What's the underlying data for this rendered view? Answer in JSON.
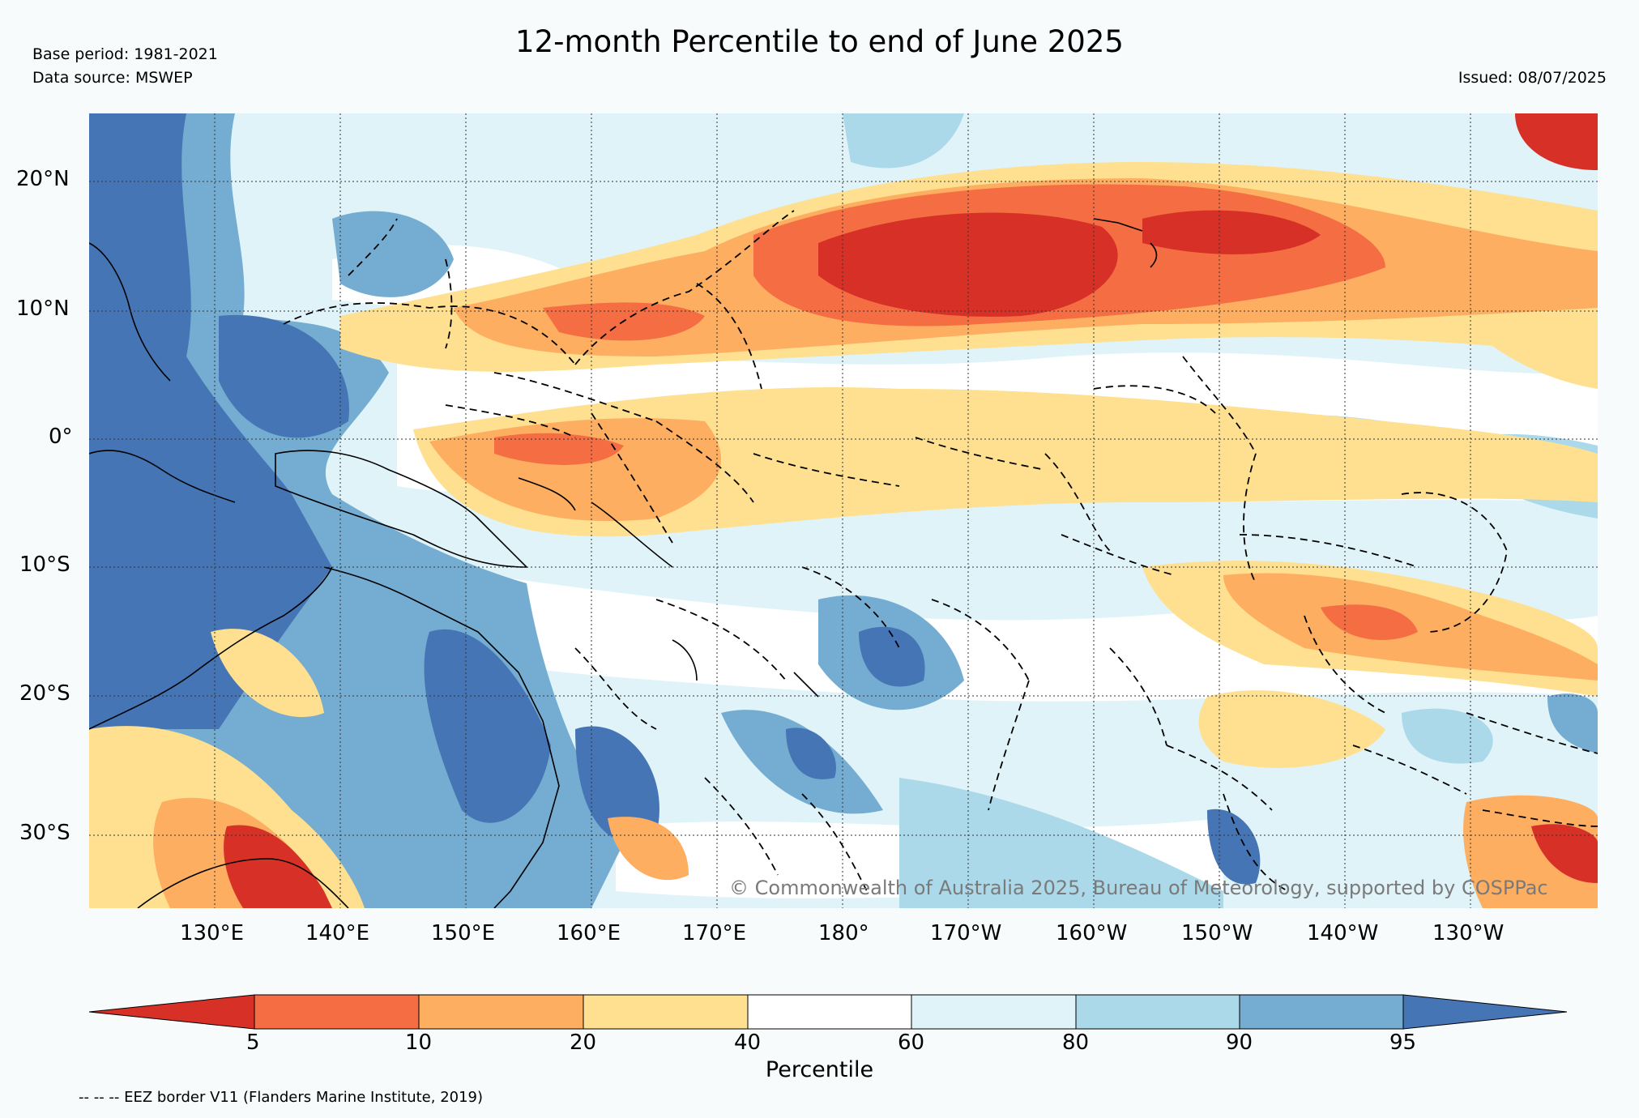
{
  "header": {
    "title": "12-month Percentile to end of June 2025",
    "base_period": "Base period: 1981-2021",
    "data_source": "Data source: MSWEP",
    "issued": "Issued: 08/07/2025"
  },
  "map": {
    "region": "Pacific Ocean",
    "lat_labels": [
      "20°N",
      "10°N",
      "0°",
      "10°S",
      "20°S",
      "30°S"
    ],
    "lon_labels": [
      "130°E",
      "140°E",
      "150°E",
      "160°E",
      "170°E",
      "180°",
      "170°W",
      "160°W",
      "150°W",
      "140°W",
      "130°W"
    ],
    "copyright": "© Commonwealth of Australia 2025, Bureau of Meteorology, supported by COSPPac"
  },
  "colorbar": {
    "label": "Percentile",
    "ticks": [
      "5",
      "10",
      "20",
      "40",
      "60",
      "80",
      "90",
      "95"
    ],
    "colors": [
      "#d73027",
      "#f46d43",
      "#fdae61",
      "#fee090",
      "#ffffff",
      "#e0f3f8",
      "#abd9e9",
      "#74add1",
      "#4575b4"
    ]
  },
  "footnote": "-- -- -- EEZ border V11 (Flanders Marine Institute, 2019)"
}
